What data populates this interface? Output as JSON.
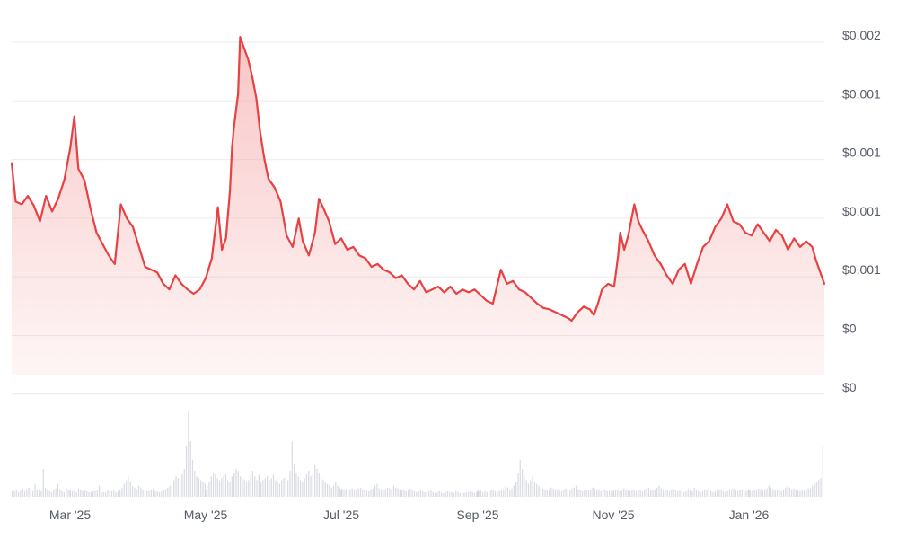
{
  "chart_data": {
    "type": "area",
    "colors": {
      "line": "#e84142",
      "fill_top": "#f6b3b3",
      "grid": "#e9ebef",
      "volume": "#d9dce2",
      "text": "#555a66"
    },
    "x_ticks": [
      "Mar '25",
      "May '25",
      "Jul '25",
      "Sep '25",
      "Nov '25",
      "Jan '26"
    ],
    "y_ticks": [
      "$0.002",
      "$0.001",
      "$0.001",
      "$0.001",
      "$0.001",
      "$0",
      "$0"
    ],
    "ylim": [
      0,
      0.0024
    ],
    "grid": true,
    "series": [
      {
        "values": [
          [
            0,
            0.00149
          ],
          [
            2,
            0.00122
          ],
          [
            5,
            0.0012
          ],
          [
            8,
            0.00126
          ],
          [
            11,
            0.00119
          ],
          [
            14,
            0.00108
          ],
          [
            17,
            0.00126
          ],
          [
            20,
            0.00115
          ],
          [
            23,
            0.00124
          ],
          [
            26,
            0.00137
          ],
          [
            29,
            0.0016
          ],
          [
            31,
            0.00182
          ],
          [
            33,
            0.00145
          ],
          [
            36,
            0.00137
          ],
          [
            39,
            0.00117
          ],
          [
            42,
            0.001
          ],
          [
            45,
            0.00092
          ],
          [
            48,
            0.00084
          ],
          [
            51,
            0.00078
          ],
          [
            54,
            0.0012
          ],
          [
            57,
            0.0011
          ],
          [
            60,
            0.00104
          ],
          [
            63,
            0.0009
          ],
          [
            66,
            0.00076
          ],
          [
            69,
            0.00074
          ],
          [
            72,
            0.00072
          ],
          [
            75,
            0.00064
          ],
          [
            78,
            0.0006
          ],
          [
            81,
            0.0007
          ],
          [
            84,
            0.00064
          ],
          [
            87,
            0.0006
          ],
          [
            90,
            0.00057
          ],
          [
            93,
            0.0006
          ],
          [
            96,
            0.00068
          ],
          [
            99,
            0.00082
          ],
          [
            102,
            0.00118
          ],
          [
            104,
            0.00088
          ],
          [
            106,
            0.00096
          ],
          [
            108,
            0.0013
          ],
          [
            109,
            0.0016
          ],
          [
            110,
            0.00175
          ],
          [
            112,
            0.00198
          ],
          [
            113,
            0.00238
          ],
          [
            115,
            0.0023
          ],
          [
            117,
            0.00222
          ],
          [
            119,
            0.0021
          ],
          [
            121,
            0.00195
          ],
          [
            123,
            0.0017
          ],
          [
            125,
            0.00152
          ],
          [
            127,
            0.00138
          ],
          [
            130,
            0.00132
          ],
          [
            133,
            0.00122
          ],
          [
            136,
            0.00098
          ],
          [
            139,
            0.0009
          ],
          [
            142,
            0.0011
          ],
          [
            144,
            0.00094
          ],
          [
            147,
            0.00084
          ],
          [
            150,
            0.001
          ],
          [
            152,
            0.00124
          ],
          [
            154,
            0.00118
          ],
          [
            157,
            0.00108
          ],
          [
            160,
            0.00092
          ],
          [
            163,
            0.00096
          ],
          [
            166,
            0.00088
          ],
          [
            169,
            0.0009
          ],
          [
            172,
            0.00084
          ],
          [
            175,
            0.00082
          ],
          [
            178,
            0.00076
          ],
          [
            181,
            0.00078
          ],
          [
            184,
            0.00074
          ],
          [
            187,
            0.00072
          ],
          [
            190,
            0.00068
          ],
          [
            193,
            0.0007
          ],
          [
            196,
            0.00064
          ],
          [
            199,
            0.0006
          ],
          [
            202,
            0.00066
          ],
          [
            205,
            0.00058
          ],
          [
            208,
            0.0006
          ],
          [
            211,
            0.00062
          ],
          [
            214,
            0.00058
          ],
          [
            217,
            0.00062
          ],
          [
            220,
            0.00057
          ],
          [
            223,
            0.0006
          ],
          [
            226,
            0.00058
          ],
          [
            229,
            0.0006
          ],
          [
            232,
            0.00056
          ],
          [
            235,
            0.00052
          ],
          [
            238,
            0.0005
          ],
          [
            240,
            0.00062
          ],
          [
            242,
            0.00074
          ],
          [
            245,
            0.00064
          ],
          [
            248,
            0.00066
          ],
          [
            251,
            0.0006
          ],
          [
            254,
            0.00058
          ],
          [
            257,
            0.00054
          ],
          [
            260,
            0.0005
          ],
          [
            263,
            0.00047
          ],
          [
            266,
            0.00046
          ],
          [
            269,
            0.00044
          ],
          [
            272,
            0.00042
          ],
          [
            275,
            0.0004
          ],
          [
            277,
            0.00038
          ],
          [
            280,
            0.00044
          ],
          [
            283,
            0.00048
          ],
          [
            286,
            0.00046
          ],
          [
            288,
            0.00042
          ],
          [
            290,
            0.0005
          ],
          [
            292,
            0.0006
          ],
          [
            295,
            0.00064
          ],
          [
            298,
            0.00062
          ],
          [
            300,
            0.00084
          ],
          [
            301,
            0.001
          ],
          [
            303,
            0.00088
          ],
          [
            305,
            0.00098
          ],
          [
            308,
            0.0012
          ],
          [
            310,
            0.00108
          ],
          [
            312,
            0.00102
          ],
          [
            315,
            0.00094
          ],
          [
            318,
            0.00084
          ],
          [
            321,
            0.00078
          ],
          [
            324,
            0.0007
          ],
          [
            327,
            0.00064
          ],
          [
            330,
            0.00074
          ],
          [
            333,
            0.00078
          ],
          [
            336,
            0.00064
          ],
          [
            339,
            0.00078
          ],
          [
            342,
            0.0009
          ],
          [
            345,
            0.00094
          ],
          [
            348,
            0.00104
          ],
          [
            351,
            0.0011
          ],
          [
            354,
            0.0012
          ],
          [
            357,
            0.00108
          ],
          [
            360,
            0.00106
          ],
          [
            363,
            0.001
          ],
          [
            366,
            0.00098
          ],
          [
            369,
            0.00106
          ],
          [
            372,
            0.001
          ],
          [
            375,
            0.00094
          ],
          [
            378,
            0.00102
          ],
          [
            381,
            0.00098
          ],
          [
            384,
            0.00088
          ],
          [
            387,
            0.00096
          ],
          [
            390,
            0.0009
          ],
          [
            393,
            0.00094
          ],
          [
            396,
            0.0009
          ],
          [
            398,
            0.0008
          ],
          [
            400,
            0.00072
          ],
          [
            402,
            0.00064
          ]
        ]
      }
    ],
    "volume": [
      6,
      6,
      8,
      5,
      7,
      9,
      6,
      8,
      10,
      7,
      6,
      14,
      8,
      7,
      6,
      30,
      10,
      8,
      6,
      5,
      7,
      9,
      14,
      8,
      6,
      5,
      10,
      7,
      6,
      6,
      8,
      5,
      9,
      8,
      6,
      7,
      6,
      5,
      5,
      6,
      6,
      7,
      12,
      6,
      5,
      5,
      7,
      6,
      6,
      8,
      5,
      6,
      8,
      10,
      14,
      18,
      22,
      16,
      12,
      10,
      8,
      12,
      10,
      8,
      7,
      6,
      6,
      8,
      9,
      6,
      6,
      5,
      6,
      7,
      8,
      10,
      12,
      14,
      18,
      22,
      20,
      18,
      24,
      30,
      55,
      92,
      60,
      40,
      28,
      22,
      20,
      18,
      16,
      14,
      12,
      16,
      22,
      26,
      24,
      20,
      18,
      20,
      22,
      24,
      18,
      16,
      22,
      26,
      30,
      28,
      22,
      20,
      18,
      16,
      18,
      24,
      28,
      22,
      18,
      24,
      16,
      18,
      20,
      22,
      18,
      20,
      24,
      18,
      16,
      14,
      18,
      20,
      22,
      18,
      28,
      60,
      36,
      26,
      22,
      18,
      16,
      20,
      24,
      28,
      22,
      26,
      34,
      30,
      26,
      22,
      18,
      16,
      14,
      12,
      10,
      12,
      16,
      12,
      10,
      9,
      8,
      8,
      7,
      8,
      9,
      8,
      7,
      9,
      10,
      8,
      7,
      7,
      6,
      8,
      9,
      12,
      14,
      9,
      8,
      7,
      8,
      10,
      9,
      8,
      12,
      10,
      9,
      8,
      7,
      7,
      6,
      8,
      9,
      7,
      6,
      5,
      6,
      7,
      6,
      5,
      5,
      6,
      7,
      5,
      4,
      5,
      6,
      5,
      4,
      5,
      6,
      5,
      5,
      4,
      6,
      5,
      4,
      5,
      4,
      5,
      5,
      6,
      5,
      4,
      5,
      6,
      7,
      5,
      6,
      5,
      6,
      8,
      7,
      6,
      5,
      6,
      7,
      8,
      12,
      10,
      8,
      9,
      12,
      16,
      26,
      40,
      30,
      22,
      18,
      14,
      18,
      22,
      16,
      14,
      12,
      10,
      9,
      8,
      7,
      8,
      10,
      9,
      8,
      8,
      7,
      6,
      8,
      9,
      8,
      7,
      9,
      10,
      12,
      8,
      7,
      6,
      7,
      8,
      7,
      8,
      10,
      9,
      8,
      7,
      6,
      8,
      7,
      6,
      7,
      6,
      6,
      8,
      7,
      6,
      7,
      9,
      8,
      7,
      6,
      8,
      7,
      6,
      8,
      7,
      6,
      8,
      9,
      10,
      8,
      7,
      8,
      10,
      12,
      9,
      8,
      7,
      7,
      6,
      8,
      9,
      7,
      6,
      7,
      6,
      5,
      6,
      8,
      7,
      6,
      10,
      8,
      6,
      5,
      6,
      7,
      8,
      7,
      6,
      5,
      6,
      7,
      8,
      7,
      6,
      5,
      6,
      7,
      8,
      9,
      7,
      6,
      7,
      8,
      7,
      6,
      8,
      7,
      6,
      7,
      8,
      9,
      8,
      7,
      8,
      9,
      12,
      10,
      8,
      7,
      8,
      7,
      6,
      8,
      10,
      12,
      10,
      8,
      9,
      8,
      7,
      6,
      8,
      7,
      8,
      9,
      10,
      12,
      14,
      16,
      18,
      20,
      55
    ]
  }
}
